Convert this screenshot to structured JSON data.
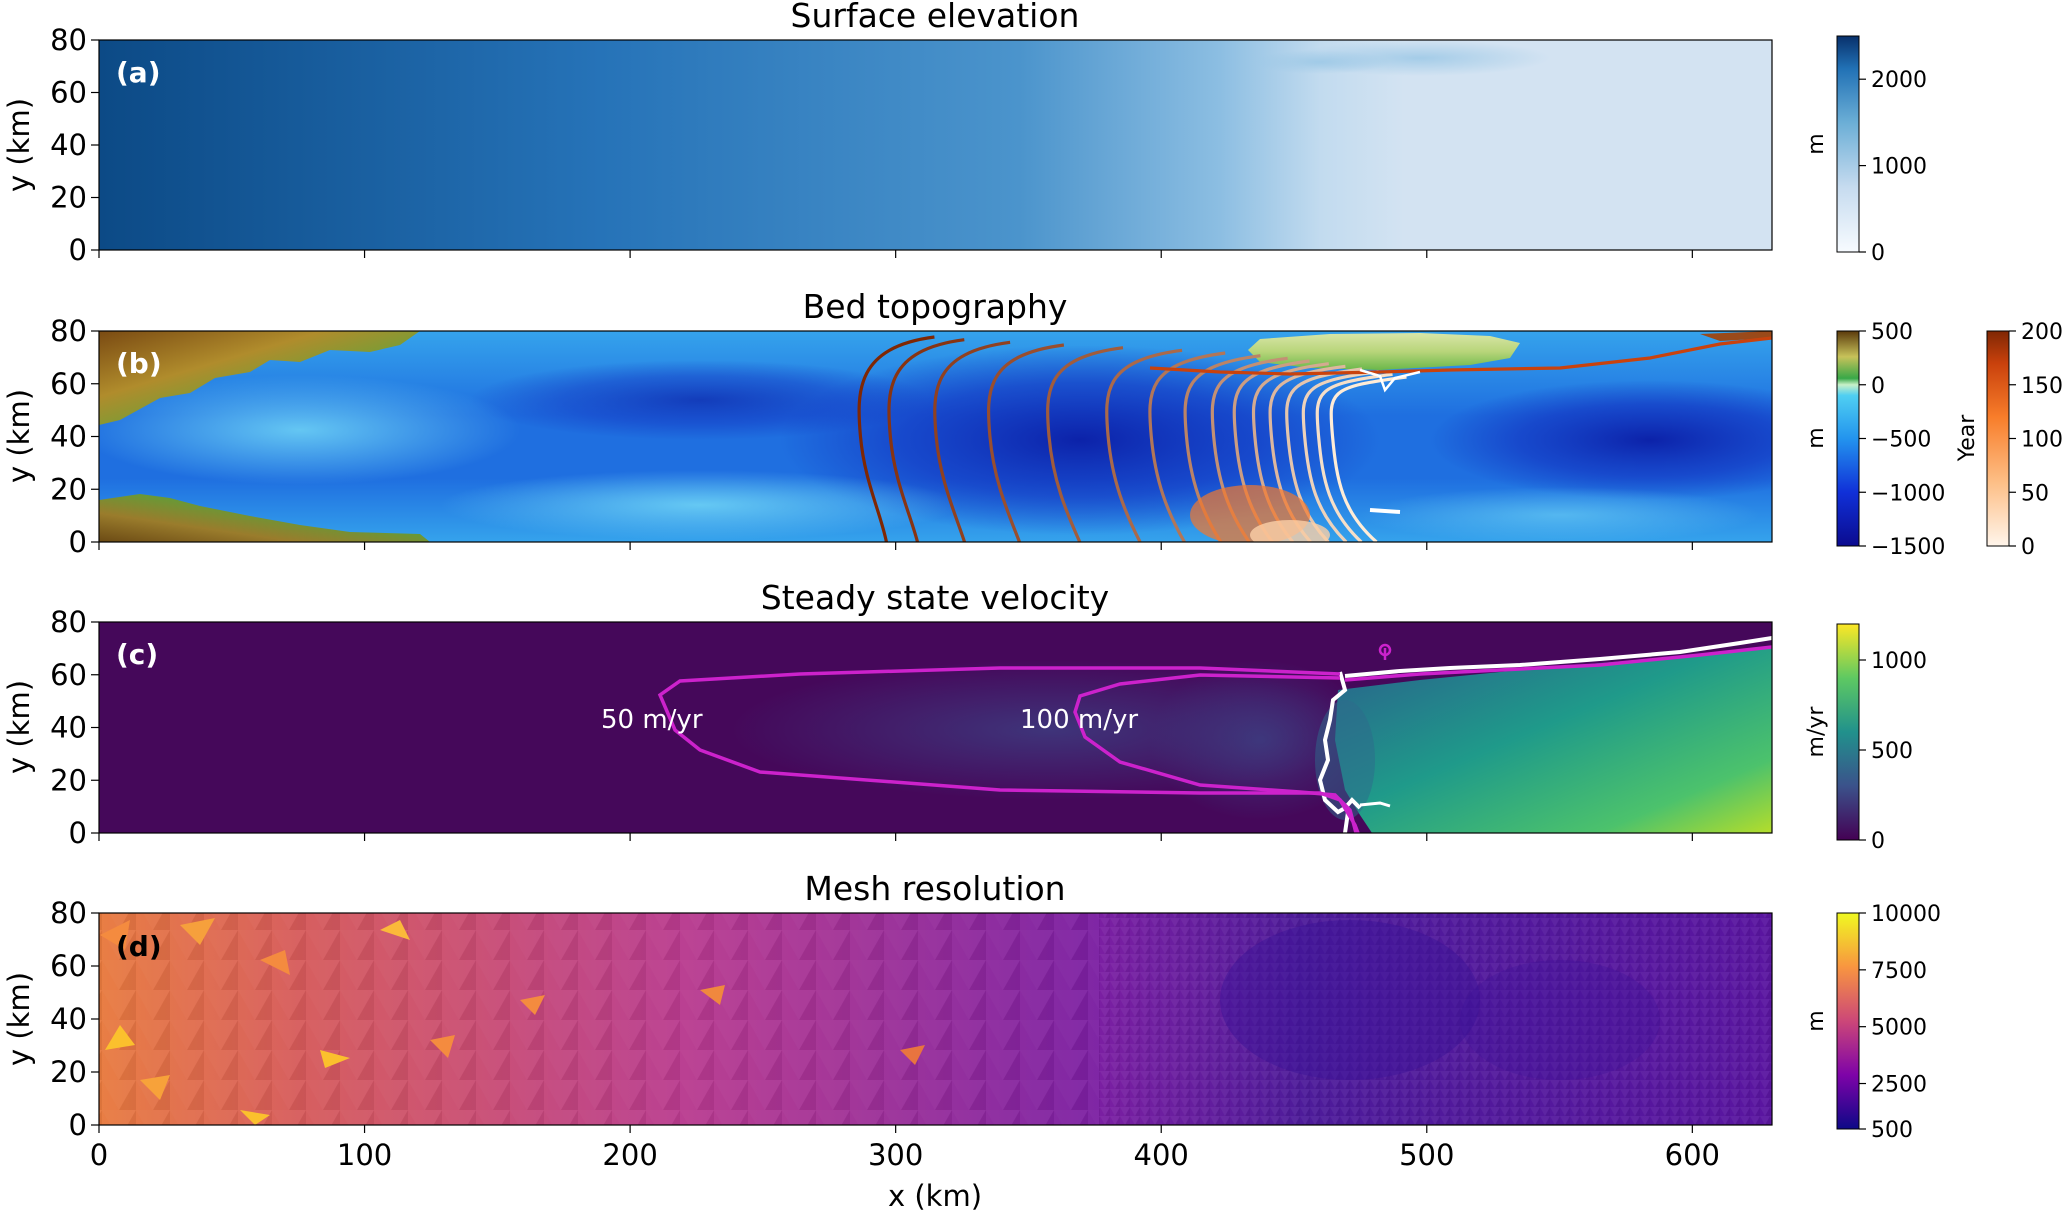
{
  "chart_data": [
    {
      "type": "heatmap",
      "panel_label": "(a)",
      "title": "Surface elevation",
      "ylabel": "y (km)",
      "xlim": [
        0,
        630
      ],
      "ylim": [
        0,
        80
      ],
      "yticks": [
        "0",
        "20",
        "40",
        "60",
        "80"
      ],
      "colorbar": {
        "label": "m",
        "ticks": [
          "0",
          "1000",
          "2000"
        ],
        "range": [
          0,
          2500
        ],
        "colormap": "Blues"
      }
    },
    {
      "type": "heatmap",
      "panel_label": "(b)",
      "title": "Bed topography",
      "ylabel": "y (km)",
      "xlim": [
        0,
        630
      ],
      "ylim": [
        0,
        80
      ],
      "yticks": [
        "0",
        "20",
        "40",
        "60",
        "80"
      ],
      "colorbar": {
        "label": "m",
        "ticks": [
          "500",
          "0",
          "−500",
          "−1000",
          "−1500"
        ],
        "range": [
          -1500,
          500
        ],
        "colormap": "terrain"
      },
      "colorbar2": {
        "label": "Year",
        "ticks": [
          "200",
          "150",
          "100",
          "50",
          "0"
        ],
        "range": [
          0,
          200
        ],
        "colormap": "Oranges"
      },
      "grounding_line_contours_x_km": [
        292,
        303,
        320,
        340,
        362,
        384,
        400,
        413,
        423,
        431,
        438,
        444,
        450,
        456,
        461,
        466
      ]
    },
    {
      "type": "heatmap",
      "panel_label": "(c)",
      "title": "Steady state velocity",
      "ylabel": "y (km)",
      "xlim": [
        0,
        630
      ],
      "ylim": [
        0,
        80
      ],
      "yticks": [
        "0",
        "20",
        "40",
        "60",
        "80"
      ],
      "colorbar": {
        "label": "m/yr",
        "ticks": [
          "0",
          "500",
          "1000"
        ],
        "range": [
          0,
          1200
        ],
        "colormap": "viridis"
      },
      "contours": [
        {
          "label": "50 m/yr",
          "value": 50
        },
        {
          "label": "100 m/yr",
          "value": 100
        }
      ]
    },
    {
      "type": "heatmap",
      "panel_label": "(d)",
      "title": "Mesh resolution",
      "ylabel": "y (km)",
      "xlabel": "x (km)",
      "xlim": [
        0,
        630
      ],
      "ylim": [
        0,
        80
      ],
      "yticks": [
        "0",
        "20",
        "40",
        "60",
        "80"
      ],
      "xticks": [
        "0",
        "100",
        "200",
        "300",
        "400",
        "500",
        "600"
      ],
      "colorbar": {
        "label": "m",
        "ticks": [
          "10000",
          "7500",
          "5000",
          "2500",
          "500"
        ],
        "range": [
          500,
          10000
        ],
        "colormap": "plasma"
      }
    }
  ],
  "colors": {
    "contour_magenta": "#cc22cc",
    "calving_front": "#ffffff",
    "label_dark": "#000000",
    "label_light": "#ffffff"
  }
}
